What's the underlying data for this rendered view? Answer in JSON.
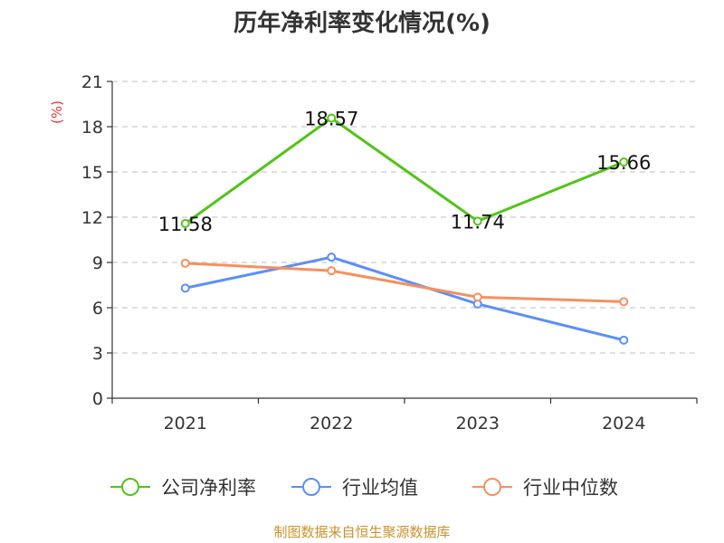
{
  "chart_data": {
    "type": "line",
    "title": "历年净利率变化情况(%)",
    "y_unit_label": "(%)",
    "categories": [
      "2021",
      "2022",
      "2023",
      "2024"
    ],
    "ylim": [
      0,
      21
    ],
    "yticks": [
      0,
      3,
      6,
      9,
      12,
      15,
      18,
      21
    ],
    "grid": true,
    "legend_position": "bottom",
    "series": [
      {
        "name": "公司净利率",
        "values": [
          11.58,
          18.57,
          11.74,
          15.66
        ],
        "color": "#52c41a",
        "labels": [
          "11.58",
          "18.57",
          "11.74",
          "15.66"
        ]
      },
      {
        "name": "行业均值",
        "values": [
          7.3,
          9.35,
          6.25,
          3.85
        ],
        "color": "#5b8ff9"
      },
      {
        "name": "行业中位数",
        "values": [
          8.95,
          8.45,
          6.7,
          6.4
        ],
        "color": "#f6905f"
      }
    ]
  },
  "source": "制图数据来自恒生聚源数据库",
  "colors": {
    "unit": "#e8323c",
    "source": "#c8932e",
    "axis": "#333333",
    "grid": "#cccccc"
  }
}
